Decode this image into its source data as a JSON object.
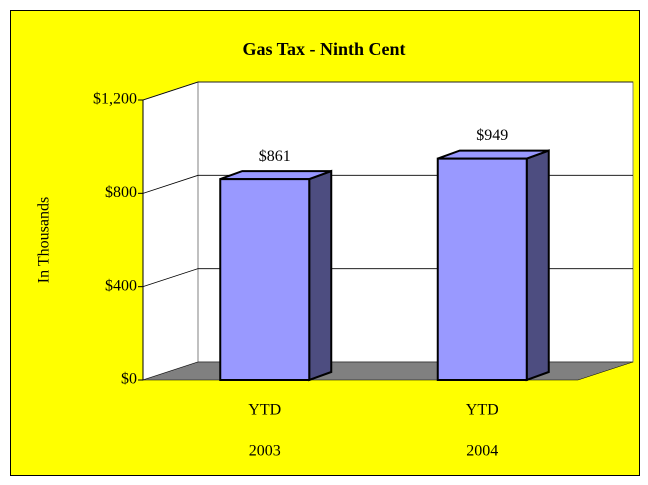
{
  "chart_data": {
    "type": "bar3d",
    "title": "Gas Tax - Ninth Cent",
    "y_label": "In Thousands",
    "categories": [
      [
        "YTD",
        "2003"
      ],
      [
        "YTD",
        "2004"
      ]
    ],
    "values": [
      861,
      949
    ],
    "value_labels": [
      "$861",
      "$949"
    ],
    "color": "#9999ff",
    "side_color": "#4d4d80",
    "background": "#ffff00",
    "floor_color": "#808080",
    "ylim": [
      0,
      1200
    ],
    "yticks": [
      {
        "value": 0,
        "label": "$0"
      },
      {
        "value": 400,
        "label": "$400"
      },
      {
        "value": 800,
        "label": "$800"
      },
      {
        "value": 1200,
        "label": "$1,200"
      }
    ],
    "grid": true
  }
}
